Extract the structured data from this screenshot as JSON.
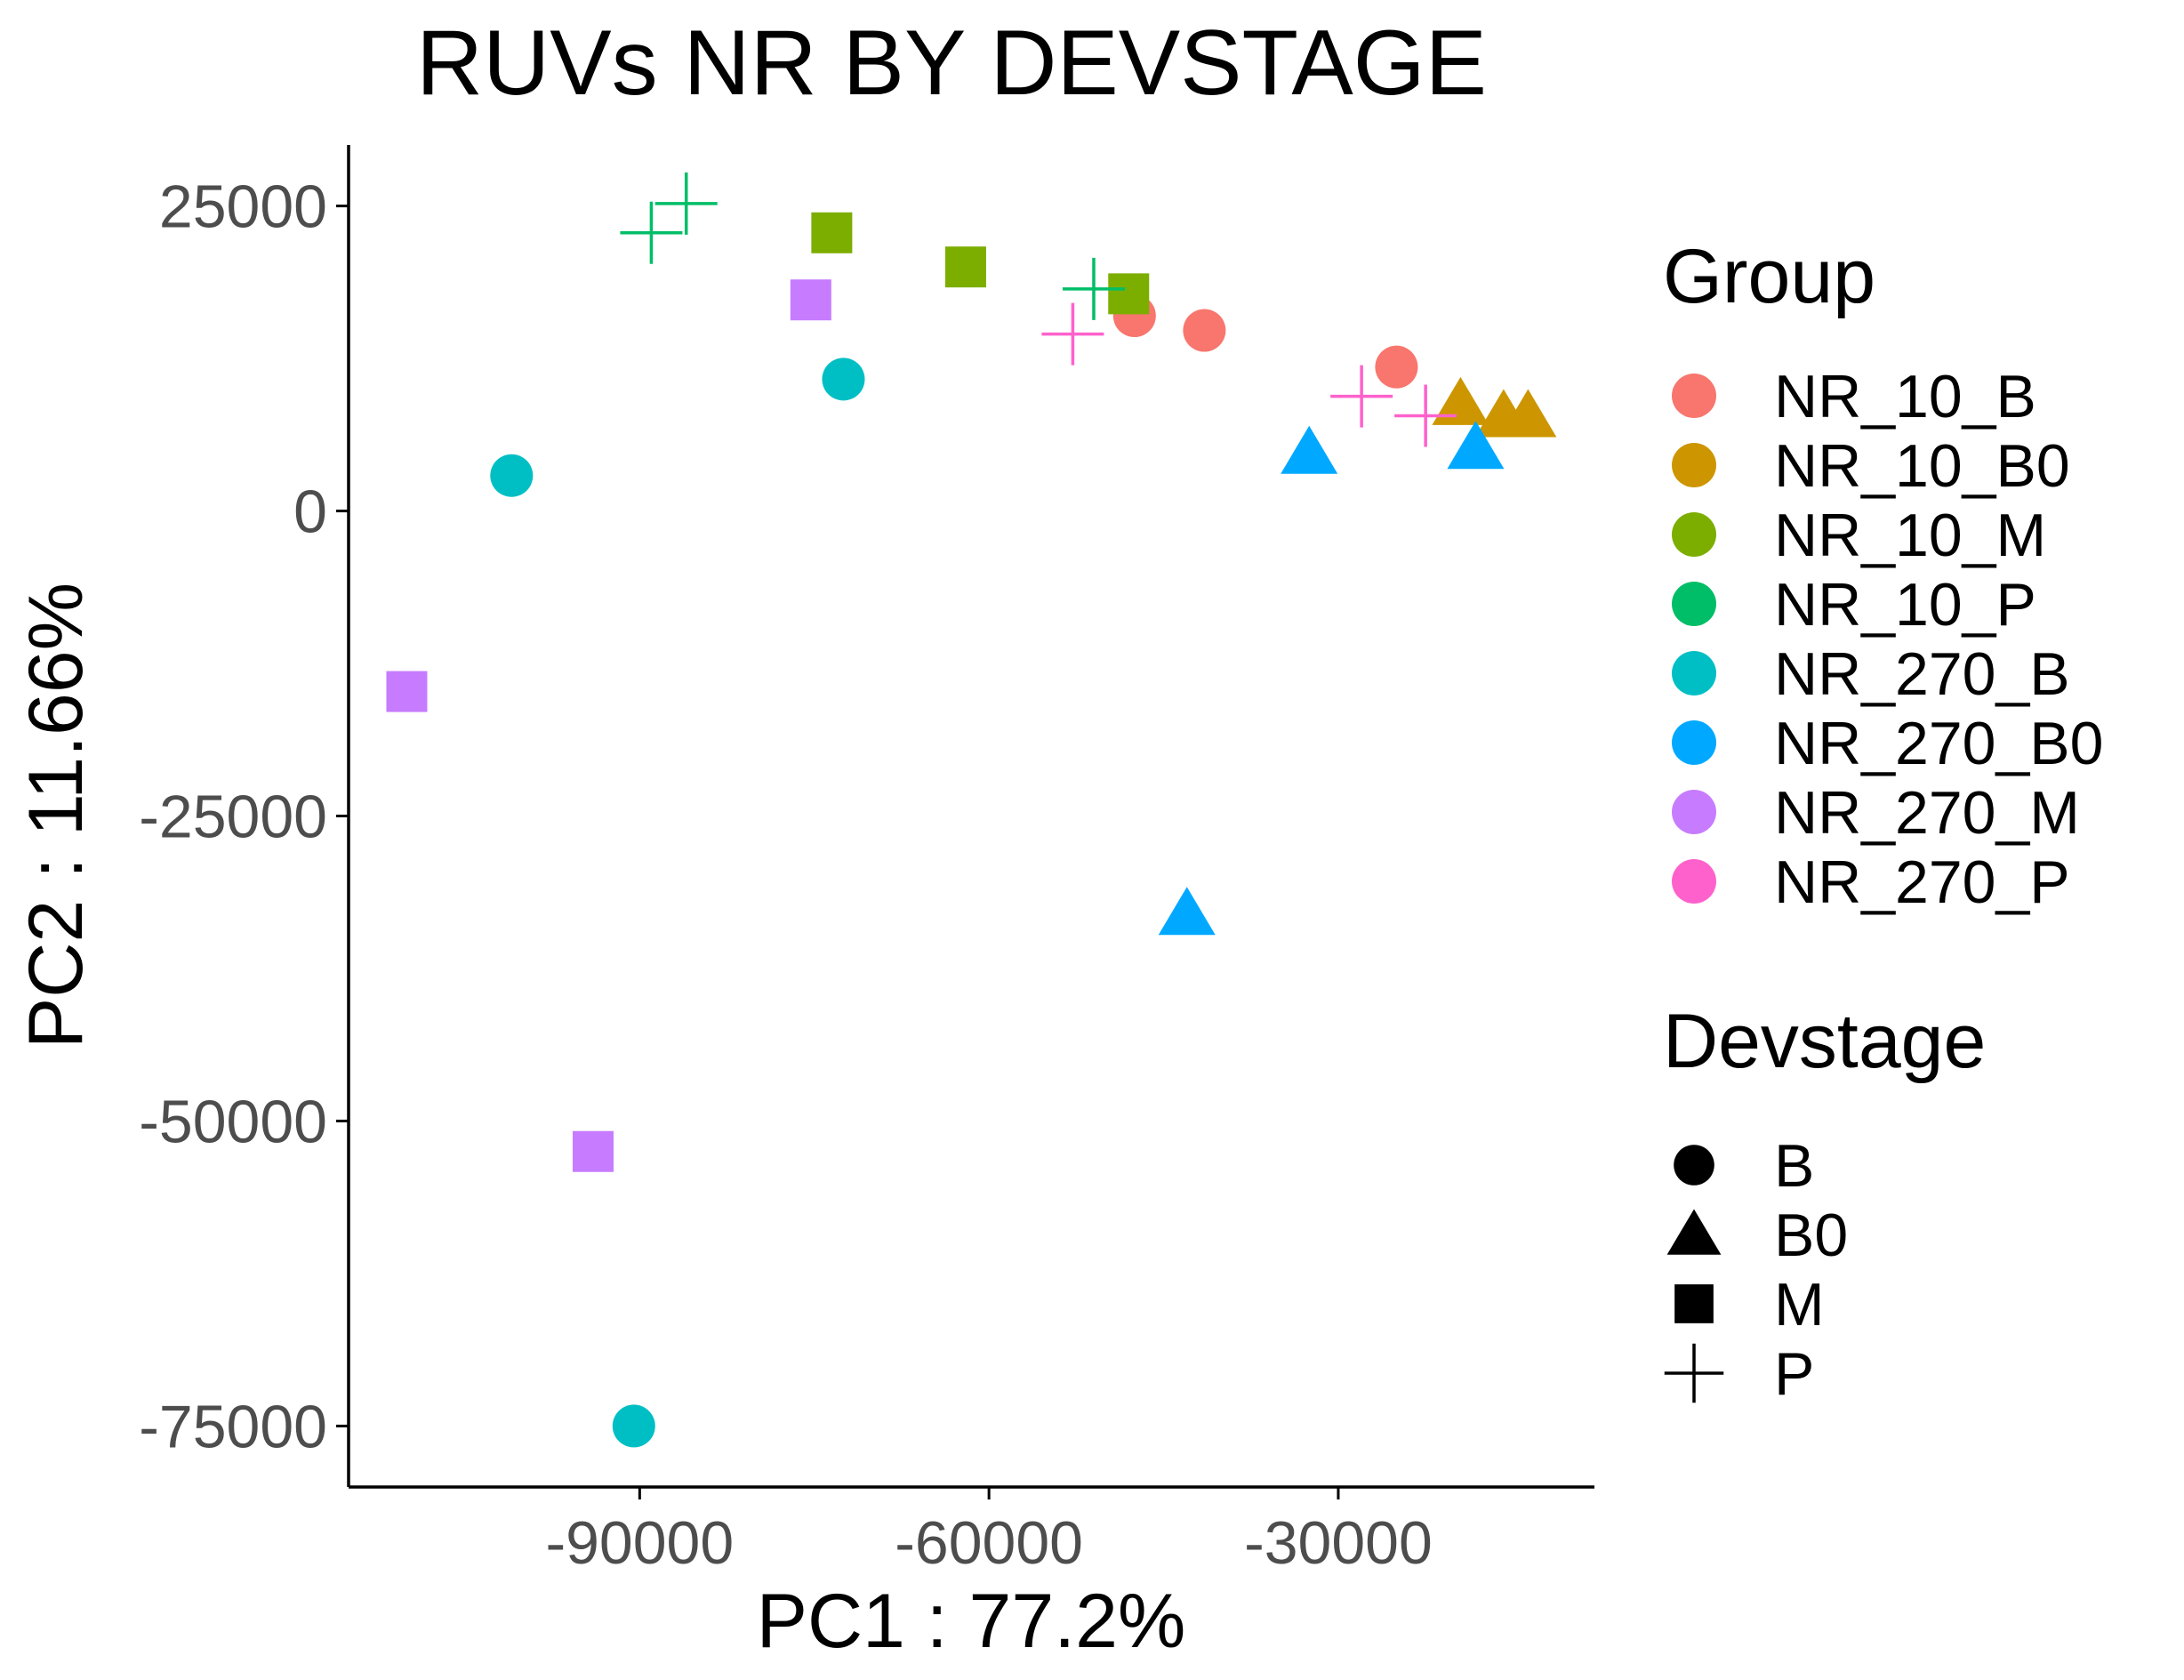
{
  "chart_data": {
    "type": "scatter",
    "title": "RUVs NR BY DEVSTAGE",
    "xlabel": "PC1 : 77.2%",
    "ylabel": "PC2 : 11.66%",
    "xlim": [
      -115000,
      -8000
    ],
    "ylim": [
      -80000,
      30000
    ],
    "xticks": [
      -90000,
      -60000,
      -30000
    ],
    "xtick_labels": [
      "-90000",
      "-60000",
      "-30000"
    ],
    "yticks": [
      -75000,
      -50000,
      -25000,
      0,
      25000
    ],
    "ytick_labels": [
      "-75000",
      "-50000",
      "-25000",
      "0",
      "25000"
    ],
    "grid": false,
    "legend_placement": "right",
    "groups": [
      {
        "name": "NR_10_B",
        "color": "#F8766D"
      },
      {
        "name": "NR_10_B0",
        "color": "#CD9600"
      },
      {
        "name": "NR_10_M",
        "color": "#7CAE00"
      },
      {
        "name": "NR_10_P",
        "color": "#00BE67"
      },
      {
        "name": "NR_270_B",
        "color": "#00BFC4"
      },
      {
        "name": "NR_270_B0",
        "color": "#00A9FF"
      },
      {
        "name": "NR_270_M",
        "color": "#C77CFF"
      },
      {
        "name": "NR_270_P",
        "color": "#FF61CC"
      }
    ],
    "devstages": [
      {
        "name": "B",
        "shape": "circle"
      },
      {
        "name": "B0",
        "shape": "triangle"
      },
      {
        "name": "M",
        "shape": "square"
      },
      {
        "name": "P",
        "shape": "plus"
      }
    ],
    "legend": {
      "group_title": "Group",
      "devstage_title": "Devstage"
    },
    "points": [
      {
        "x": -47500,
        "y": 16000,
        "group": "NR_10_B",
        "devstage": "B"
      },
      {
        "x": -41500,
        "y": 14800,
        "group": "NR_10_B",
        "devstage": "B"
      },
      {
        "x": -25000,
        "y": 11800,
        "group": "NR_10_B",
        "devstage": "B"
      },
      {
        "x": -19500,
        "y": 8800,
        "group": "NR_10_B0",
        "devstage": "B0"
      },
      {
        "x": -15800,
        "y": 7800,
        "group": "NR_10_B0",
        "devstage": "B0"
      },
      {
        "x": -13700,
        "y": 7800,
        "group": "NR_10_B0",
        "devstage": "B0"
      },
      {
        "x": -73500,
        "y": 22800,
        "group": "NR_10_M",
        "devstage": "M"
      },
      {
        "x": -62000,
        "y": 20000,
        "group": "NR_10_M",
        "devstage": "M"
      },
      {
        "x": -48000,
        "y": 17800,
        "group": "NR_10_M",
        "devstage": "M"
      },
      {
        "x": -89000,
        "y": 22800,
        "group": "NR_10_P",
        "devstage": "P"
      },
      {
        "x": -86000,
        "y": 25200,
        "group": "NR_10_P",
        "devstage": "P"
      },
      {
        "x": -51000,
        "y": 18200,
        "group": "NR_10_P",
        "devstage": "P"
      },
      {
        "x": -101000,
        "y": 2900,
        "group": "NR_270_B",
        "devstage": "B"
      },
      {
        "x": -72500,
        "y": 10800,
        "group": "NR_270_B",
        "devstage": "B"
      },
      {
        "x": -90500,
        "y": -75000,
        "group": "NR_270_B",
        "devstage": "B"
      },
      {
        "x": -32500,
        "y": 4800,
        "group": "NR_270_B0",
        "devstage": "B0"
      },
      {
        "x": -18200,
        "y": 5200,
        "group": "NR_270_B0",
        "devstage": "B0"
      },
      {
        "x": -43000,
        "y": -33000,
        "group": "NR_270_B0",
        "devstage": "B0"
      },
      {
        "x": -75300,
        "y": 17300,
        "group": "NR_270_M",
        "devstage": "M"
      },
      {
        "x": -110000,
        "y": -14800,
        "group": "NR_270_M",
        "devstage": "M"
      },
      {
        "x": -94000,
        "y": -52500,
        "group": "NR_270_M",
        "devstage": "M"
      },
      {
        "x": -52800,
        "y": 14500,
        "group": "NR_270_P",
        "devstage": "P"
      },
      {
        "x": -28000,
        "y": 9400,
        "group": "NR_270_P",
        "devstage": "P"
      },
      {
        "x": -22500,
        "y": 7800,
        "group": "NR_270_P",
        "devstage": "P"
      }
    ]
  }
}
